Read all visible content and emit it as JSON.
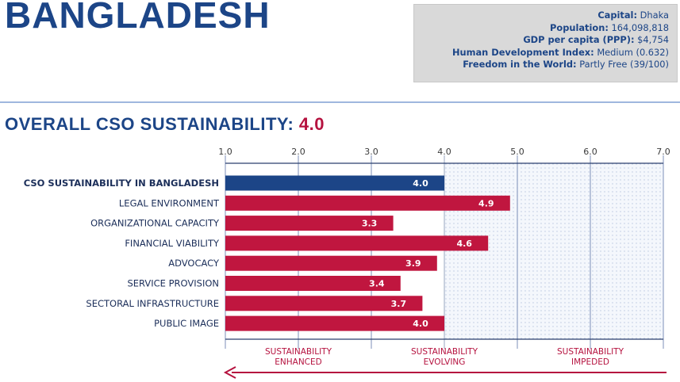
{
  "header": {
    "country": "BANGLADESH",
    "facts": [
      {
        "label": "Capital:",
        "value": "Dhaka"
      },
      {
        "label": "Population:",
        "value": "164,098,818"
      },
      {
        "label": "GDP per capita (PPP):",
        "value": "$4,754"
      },
      {
        "label": "Human Development Index:",
        "value": "Medium (0.632)"
      },
      {
        "label": "Freedom in the World:",
        "value": "Partly Free (39/100)"
      }
    ]
  },
  "overall": {
    "label": "OVERALL CSO SUSTAINABILITY:",
    "score": "4.0"
  },
  "colors": {
    "highlight_bar": "#1c4587",
    "bar": "#c0163f",
    "title_blue": "#1c4587",
    "accent_red": "#b5123f"
  },
  "chart_data": {
    "type": "bar",
    "orientation": "horizontal",
    "categories": [
      "CSO SUSTAINABILITY IN BANGLADESH",
      "LEGAL ENVIRONMENT",
      "ORGANIZATIONAL CAPACITY",
      "FINANCIAL VIABILITY",
      "ADVOCACY",
      "SERVICE PROVISION",
      "SECTORAL INFRASTRUCTURE",
      "PUBLIC IMAGE"
    ],
    "values": [
      4.0,
      4.9,
      3.3,
      4.6,
      3.9,
      3.4,
      3.7,
      4.0
    ],
    "value_labels": [
      "4.0",
      "4.9",
      "3.3",
      "4.6",
      "3.9",
      "3.4",
      "3.7",
      "4.0"
    ],
    "highlight_index": 0,
    "xlim": [
      1.0,
      7.0
    ],
    "xticks": [
      "1.0",
      "2.0",
      "3.0",
      "4.0",
      "5.0",
      "6.0",
      "7.0"
    ],
    "grid": true,
    "zones": [
      {
        "lines": [
          "SUSTAINABILITY",
          "ENHANCED"
        ],
        "from": 1.0,
        "to": 3.0
      },
      {
        "lines": [
          "SUSTAINABILITY",
          "EVOLVING"
        ],
        "from": 3.0,
        "to": 5.0
      },
      {
        "lines": [
          "SUSTAINABILITY",
          "IMPEDED"
        ],
        "from": 5.0,
        "to": 7.0
      }
    ]
  }
}
